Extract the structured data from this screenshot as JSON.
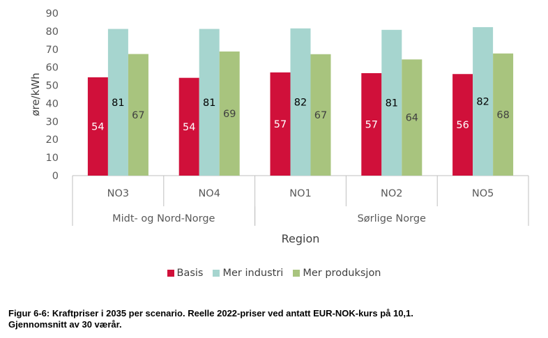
{
  "chart_data": {
    "type": "bar",
    "categories": [
      "NO3",
      "NO4",
      "NO1",
      "NO2",
      "NO5"
    ],
    "groups": [
      {
        "label": "Midt- og Nord-Norge",
        "categories": [
          "NO3",
          "NO4"
        ]
      },
      {
        "label": "Sørlige Norge",
        "categories": [
          "NO1",
          "NO2",
          "NO5"
        ]
      }
    ],
    "series": [
      {
        "name": "Basis",
        "color": "#d0103a",
        "values": [
          54.5,
          54.2,
          57.2,
          56.8,
          56.3
        ],
        "labels": [
          "54",
          "54",
          "57",
          "57",
          "56"
        ],
        "label_color": "#ffffff"
      },
      {
        "name": "Mer industri",
        "color": "#a6d5cf",
        "values": [
          81.3,
          81.3,
          81.6,
          80.8,
          82.3
        ],
        "labels": [
          "81",
          "81",
          "82",
          "81",
          "82"
        ],
        "label_color": "#000000"
      },
      {
        "name": "Mer produksjon",
        "color": "#a8c47e",
        "values": [
          67.4,
          68.8,
          67.3,
          64.4,
          67.7
        ],
        "labels": [
          "67",
          "69",
          "67",
          "64",
          "68"
        ],
        "label_color": "#404040"
      }
    ],
    "ylabel": "øre/kWh",
    "xlabel": "Region",
    "ylim": [
      0,
      90
    ],
    "yticks": [
      "0",
      "10",
      "20",
      "30",
      "40",
      "50",
      "60",
      "70",
      "80",
      "90"
    ],
    "grid": false,
    "legend_position": "bottom"
  },
  "caption": {
    "line1": "Figur 6-6: Kraftpriser i 2035 per scenario. Reelle 2022-priser ved antatt EUR-NOK-kurs på 10,1.",
    "line2": "Gjennomsnitt av 30 værår."
  }
}
